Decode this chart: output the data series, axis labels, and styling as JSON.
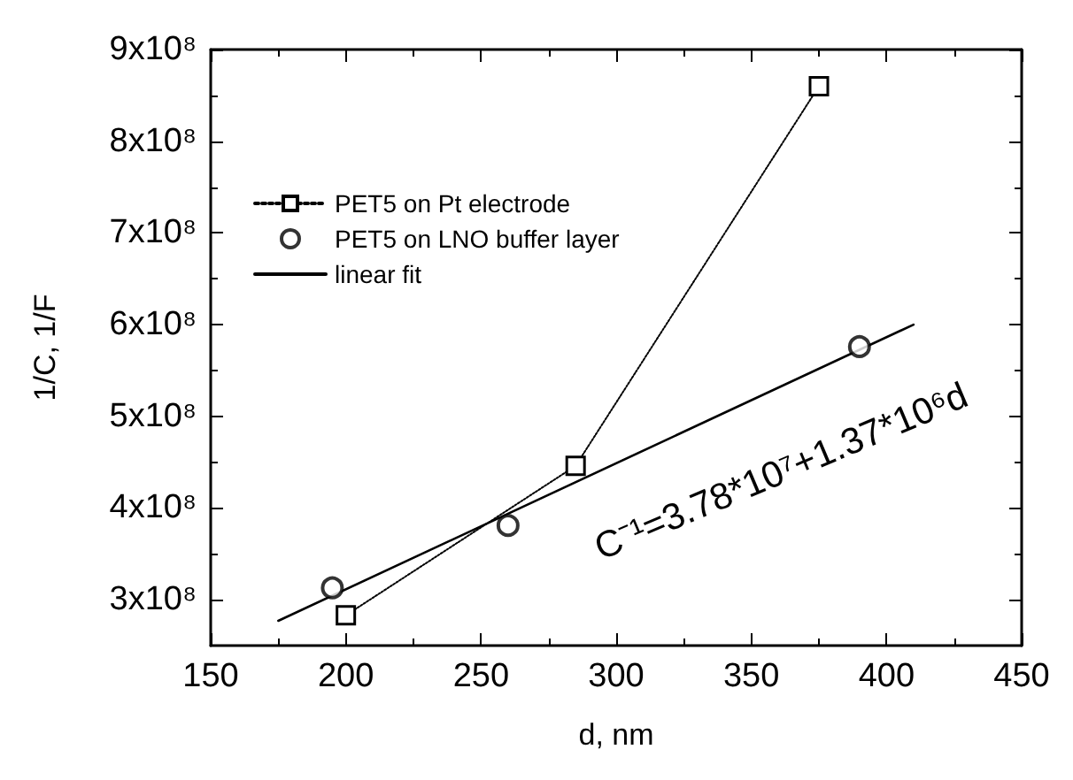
{
  "chart_data": {
    "type": "line",
    "xlabel": "d, nm",
    "ylabel": "1/C, 1/F",
    "xlim": [
      150,
      450
    ],
    "xticks": [
      150,
      200,
      250,
      300,
      350,
      400,
      450
    ],
    "ylim": [
      250000000,
      900000000
    ],
    "yticks": [
      {
        "value": 300000000,
        "label": "3x10⁸"
      },
      {
        "value": 400000000,
        "label": "4x10⁸"
      },
      {
        "value": 500000000,
        "label": "5x10⁸"
      },
      {
        "value": 600000000,
        "label": "6x10⁸"
      },
      {
        "value": 700000000,
        "label": "7x10⁸"
      },
      {
        "value": 800000000,
        "label": "8x10⁸"
      },
      {
        "value": 900000000,
        "label": "9x10⁸"
      }
    ],
    "grid": false,
    "legend": "top left",
    "series": [
      {
        "name": "PET5 on Pt electrode",
        "color": "#000000",
        "marker": "square",
        "line_style": "dotted",
        "x": [
          200,
          285,
          375
        ],
        "values": [
          283000000,
          446000000,
          860000000
        ]
      },
      {
        "name": "PET5 on LNO buffer layer",
        "type": "scatter",
        "color": "#000000",
        "marker": "circle",
        "x": [
          195,
          260,
          390
        ],
        "values": [
          313000000,
          381000000,
          576000000
        ]
      },
      {
        "name": "linear fit",
        "type": "line",
        "color": "#000000",
        "marker": "none",
        "line_style": "solid",
        "x": [
          175,
          410
        ],
        "values": [
          277000000,
          600000000
        ]
      }
    ],
    "annotations": [
      "C⁻¹=3.78*10⁷+1.37*10⁶d"
    ]
  }
}
